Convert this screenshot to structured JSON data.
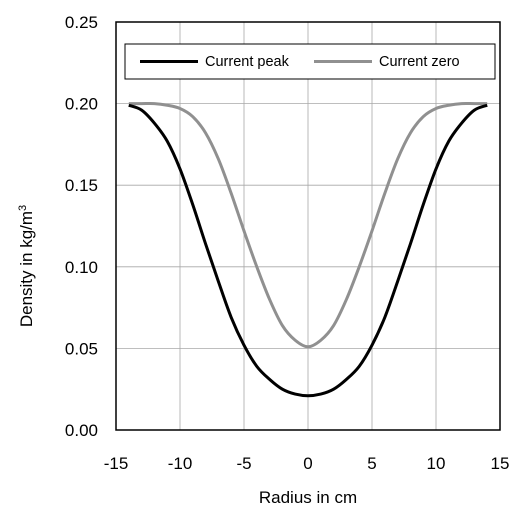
{
  "chart_data": {
    "type": "line",
    "xlabel": "Radius in cm",
    "ylabel": "Density in kg/m",
    "ylabel_superscript": "3",
    "xlim": [
      -15,
      15
    ],
    "ylim": [
      0,
      0.25
    ],
    "x_ticks": [
      -15,
      -10,
      -5,
      0,
      5,
      10,
      15
    ],
    "y_ticks": [
      0.0,
      0.05,
      0.1,
      0.15,
      0.2,
      0.25
    ],
    "x_tick_labels": [
      "-15",
      "-10",
      "-5",
      "0",
      "5",
      "10",
      "15"
    ],
    "y_tick_labels": [
      "0.00",
      "0.05",
      "0.10",
      "0.15",
      "0.20",
      "0.25"
    ],
    "grid": true,
    "legend_position": "top",
    "series": [
      {
        "name": "Current peak",
        "color": "#000000",
        "x": [
          -14,
          -13,
          -12,
          -11,
          -10,
          -9,
          -8,
          -7,
          -6,
          -5,
          -4,
          -3,
          -2,
          -1,
          0,
          1,
          2,
          3,
          4,
          5,
          6,
          7,
          8,
          9,
          10,
          11,
          12,
          13,
          14
        ],
        "y": [
          0.199,
          0.196,
          0.188,
          0.177,
          0.16,
          0.138,
          0.114,
          0.091,
          0.069,
          0.052,
          0.039,
          0.031,
          0.025,
          0.022,
          0.021,
          0.022,
          0.025,
          0.031,
          0.039,
          0.052,
          0.069,
          0.091,
          0.114,
          0.138,
          0.16,
          0.177,
          0.188,
          0.196,
          0.199
        ]
      },
      {
        "name": "Current zero",
        "color": "#909090",
        "x": [
          -14,
          -13,
          -12,
          -11,
          -10,
          -9,
          -8,
          -7,
          -6,
          -5,
          -4,
          -3,
          -2,
          -1,
          0,
          1,
          2,
          3,
          4,
          5,
          6,
          7,
          8,
          9,
          10,
          11,
          12,
          13,
          14
        ],
        "y": [
          0.2,
          0.2,
          0.2,
          0.199,
          0.197,
          0.192,
          0.182,
          0.166,
          0.145,
          0.122,
          0.1,
          0.08,
          0.064,
          0.055,
          0.051,
          0.055,
          0.064,
          0.08,
          0.1,
          0.122,
          0.145,
          0.166,
          0.182,
          0.192,
          0.197,
          0.199,
          0.2,
          0.2,
          0.2
        ]
      }
    ]
  }
}
